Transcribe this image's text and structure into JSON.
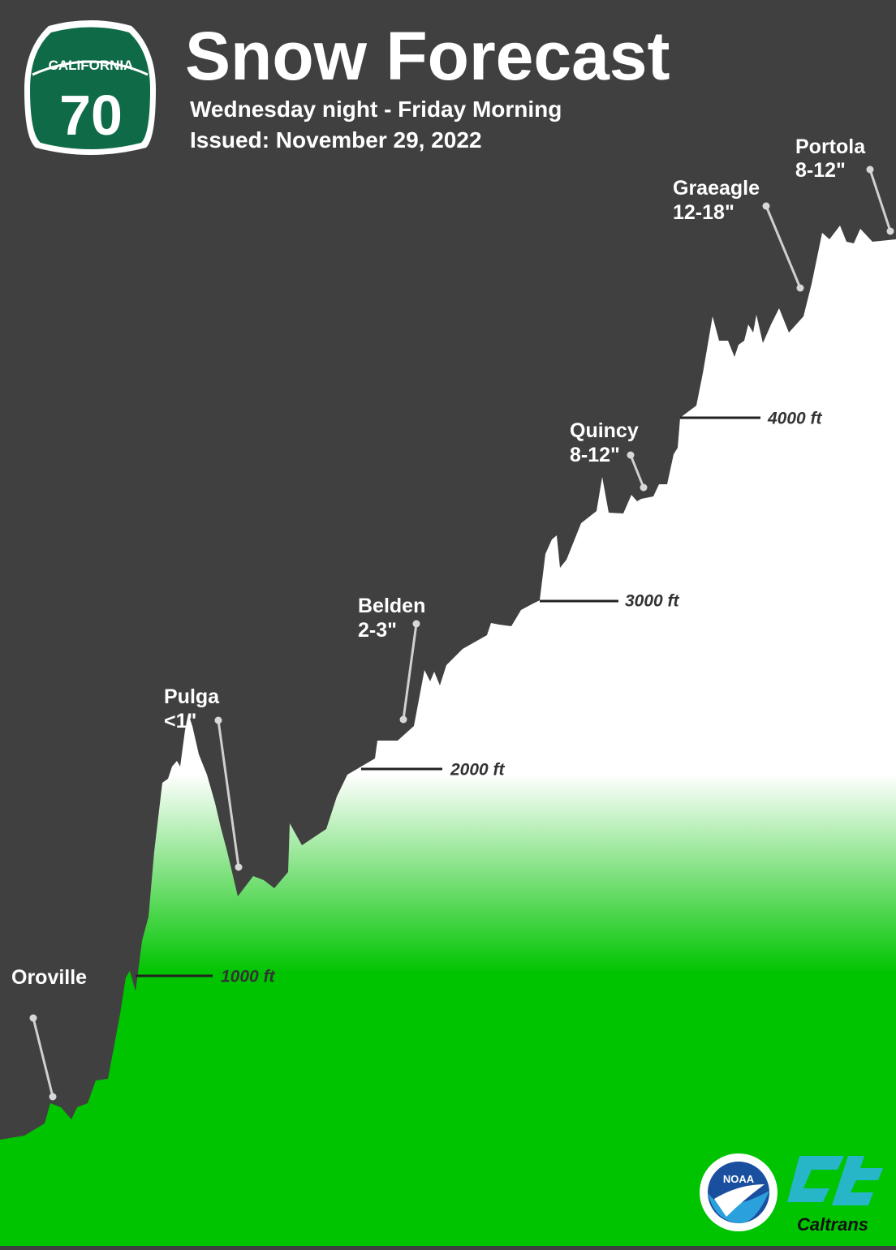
{
  "shield": {
    "state": "CALIFORNIA",
    "route": "70"
  },
  "header": {
    "title": "Snow Forecast",
    "subtitle": "Wednesday night - Friday Morning",
    "issued": "Issued: November 29, 2022"
  },
  "locations": [
    {
      "name": "Oroville"
    },
    {
      "name": "Pulga",
      "amount": "<1\""
    },
    {
      "name": "Belden",
      "amount": "2-3\""
    },
    {
      "name": "Quincy",
      "amount": "8-12\""
    },
    {
      "name": "Graeagle",
      "amount": "12-18\""
    },
    {
      "name": "Portola",
      "amount": "8-12\""
    }
  ],
  "elevations": [
    "1000 ft",
    "2000 ft",
    "3000 ft",
    "4000 ft"
  ],
  "logos": {
    "noaa": "NOAA",
    "caltrans": "Caltrans"
  }
}
